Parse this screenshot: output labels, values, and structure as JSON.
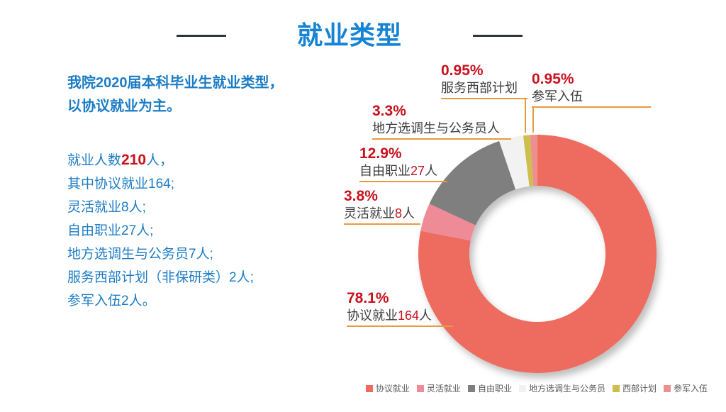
{
  "slide": {
    "title": "就业类型",
    "intro_line1": "我院2020届本科毕业生就业类型，",
    "intro_line2": "以协议就业为主。"
  },
  "stats": {
    "line1_pre": "就业人数",
    "line1_num": "210",
    "line1_post": "人，",
    "lines": [
      "其中协议就业164;",
      "灵活就业8人;",
      "自由职业27人;",
      "地方选调生与公务员7人;",
      "服务西部计划（非保研类）2人;",
      "参军入伍2人。"
    ]
  },
  "callouts": [
    {
      "pct": "0.95%",
      "pre": "服务西部计划",
      "num": "",
      "post": ""
    },
    {
      "pct": "0.95%",
      "pre": "参军入伍",
      "num": "",
      "post": ""
    },
    {
      "pct": "3.3%",
      "pre": "地方选调生与公务员人",
      "num": "",
      "post": ""
    },
    {
      "pct": "12.9%",
      "pre": "自由职业",
      "num": "27",
      "post": "人"
    },
    {
      "pct": "3.8%",
      "pre": "灵活就业",
      "num": "8",
      "post": "人"
    },
    {
      "pct": "78.1%",
      "pre": "协议就业",
      "num": "164",
      "post": "人"
    }
  ],
  "chart_data": {
    "type": "pie",
    "subtype": "donut",
    "title": "就业类型",
    "total": 210,
    "series": [
      {
        "name": "协议就业",
        "value": 164,
        "pct": 78.1,
        "color": "#ED6C5E"
      },
      {
        "name": "灵活就业",
        "value": 8,
        "pct": 3.8,
        "color": "#EF8B96"
      },
      {
        "name": "自由职业",
        "value": 27,
        "pct": 12.9,
        "color": "#7F7F7F"
      },
      {
        "name": "地方选调生与公务员",
        "value": 7,
        "pct": 3.3,
        "color": "#F2F2F2"
      },
      {
        "name": "西部计划",
        "value": 2,
        "pct": 0.95,
        "color": "#CEBE4F"
      },
      {
        "name": "参军入伍",
        "value": 2,
        "pct": 0.95,
        "color": "#ED8F90"
      }
    ],
    "start_angle_deg": 0,
    "direction": "clockwise",
    "center": [
      758,
      358
    ],
    "outer_radius": 168,
    "inner_radius": 96,
    "legend_position": "bottom-right",
    "colors": {
      "accent_blue": "#1583D6",
      "accent_red": "#C8111C",
      "leader_orange": "#E89A3E"
    }
  }
}
